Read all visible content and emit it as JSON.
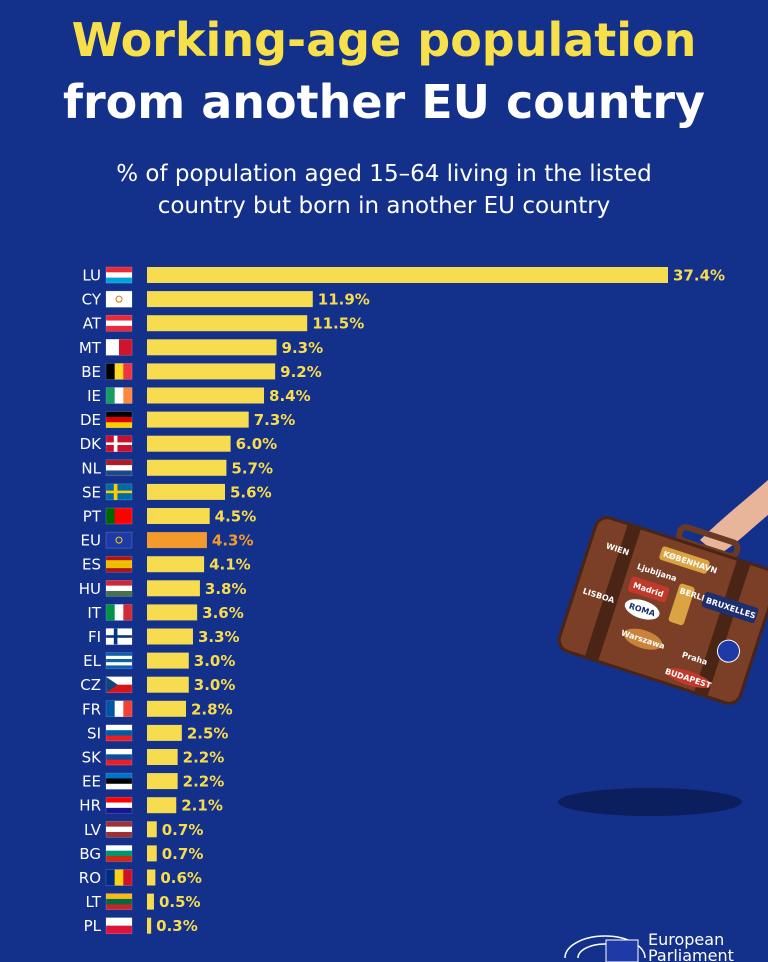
{
  "chart_data": {
    "type": "hbar",
    "title": [
      "Working-age population",
      "from another EU country"
    ],
    "subtitle": [
      "% of population aged 15–64 living in the listed",
      "country but born in another EU country"
    ],
    "categories": [
      "LU",
      "CY",
      "AT",
      "MT",
      "BE",
      "IE",
      "DE",
      "DK",
      "NL",
      "SE",
      "PT",
      "EU",
      "ES",
      "HU",
      "IT",
      "FI",
      "EL",
      "CZ",
      "FR",
      "SI",
      "SK",
      "EE",
      "HR",
      "LV",
      "BG",
      "RO",
      "LT",
      "PL"
    ],
    "values": [
      37.4,
      11.9,
      11.5,
      9.3,
      9.2,
      8.4,
      7.3,
      6.0,
      5.7,
      5.6,
      4.5,
      4.3,
      4.1,
      3.8,
      3.6,
      3.3,
      3.0,
      3.0,
      2.8,
      2.5,
      2.2,
      2.2,
      2.1,
      0.7,
      0.7,
      0.6,
      0.5,
      0.3
    ],
    "value_labels": [
      "37.4%",
      "11.9%",
      "11.5%",
      "9.3%",
      "9.2%",
      "8.4%",
      "7.3%",
      "6.0%",
      "5.7%",
      "5.6%",
      "4.5%",
      "4.3%",
      "4.1%",
      "3.8%",
      "3.6%",
      "3.3%",
      "3.0%",
      "3.0%",
      "2.8%",
      "2.5%",
      "2.2%",
      "2.2%",
      "2.1%",
      "0.7%",
      "0.7%",
      "0.6%",
      "0.5%",
      "0.3%"
    ],
    "colors": [
      "#f7dc4f",
      "#f7dc4f",
      "#f7dc4f",
      "#f7dc4f",
      "#f7dc4f",
      "#f7dc4f",
      "#f7dc4f",
      "#f7dc4f",
      "#f7dc4f",
      "#f7dc4f",
      "#f7dc4f",
      "#f39a2c",
      "#f7dc4f",
      "#f7dc4f",
      "#f7dc4f",
      "#f7dc4f",
      "#f7dc4f",
      "#f7dc4f",
      "#f7dc4f",
      "#f7dc4f",
      "#f7dc4f",
      "#f7dc4f",
      "#f7dc4f",
      "#f7dc4f",
      "#f7dc4f",
      "#f7dc4f",
      "#f7dc4f",
      "#f7dc4f"
    ],
    "xlim": [
      0,
      37.4
    ]
  },
  "illustration": {
    "stickers": [
      "KØBENHAVN",
      "Ljubljana",
      "WIEN",
      "Madrid",
      "BERLIN",
      "BRUXELLES",
      "ROMA",
      "LISBOA",
      "Warszawa",
      "Praha",
      "BUDAPEST"
    ]
  },
  "footer": {
    "logo": [
      "European",
      "Parliament"
    ]
  }
}
